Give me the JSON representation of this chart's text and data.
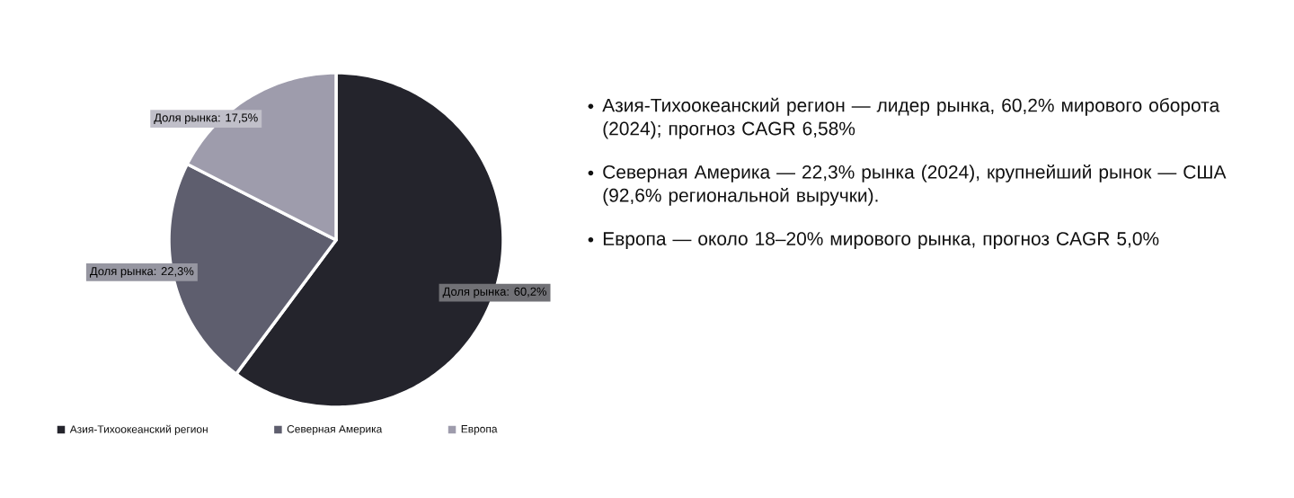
{
  "chart_data": {
    "type": "pie",
    "categories": [
      "Азия-Тихоокеанский регион",
      "Северная Америка",
      "Европа"
    ],
    "values": [
      60.2,
      22.3,
      17.5
    ],
    "colors": [
      "#24242c",
      "#5e5e6e",
      "#9e9cac"
    ],
    "value_labels": [
      "Доля рынка: 60,2%",
      "Доля рынка: 22,3%",
      "Доля рынка: 17,5%"
    ],
    "legend": "bottom",
    "annotations": [
      "Азия-Тихоокеанский регион — лидер рынка, 60,2% мирового оборота (2024); прогноз CAGR 6,58%",
      "Северная Америка — 22,3% рынка (2024), крупнейший рынок — США (92,6% региональной выручки).",
      "Европа — около 18–20% мирового рынка, прогноз CAGR 5,0%"
    ]
  }
}
